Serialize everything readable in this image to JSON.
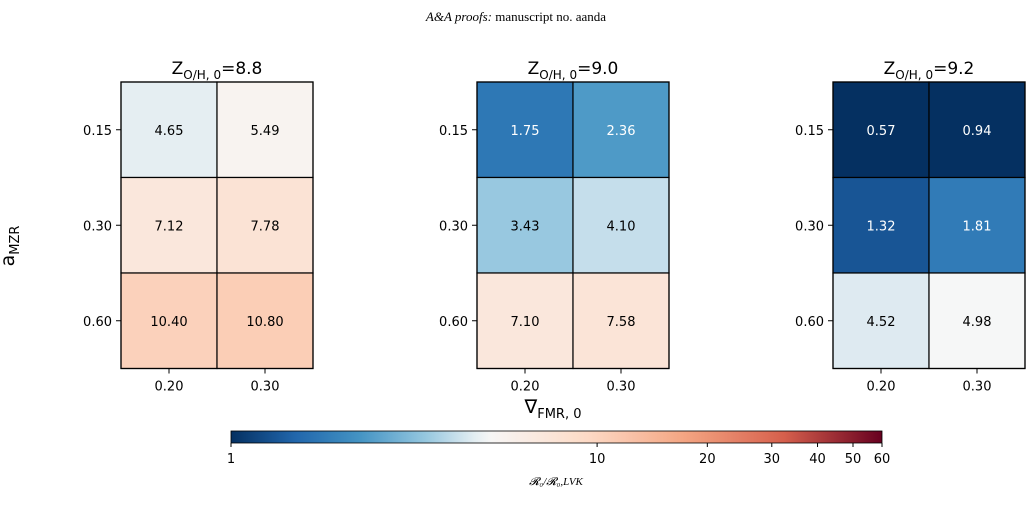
{
  "header": {
    "journal": "A&A proofs:",
    "rest": "manuscript no. aanda"
  },
  "ylabel": {
    "main": "a",
    "sub": "MZR"
  },
  "xlabel": {
    "main": "∇",
    "sub": "FMR, 0"
  },
  "colorbar": {
    "label": "𝓡₀/𝓡₀,LVK",
    "ticks": [
      "1",
      "10",
      "20",
      "30",
      "40",
      "50",
      "60"
    ],
    "tick_values": [
      1,
      10,
      20,
      30,
      40,
      50,
      60
    ],
    "range": [
      1,
      60
    ],
    "scale": "log",
    "colormap": "RdBu_r",
    "center": 5
  },
  "chart_data": [
    {
      "type": "heatmap",
      "title": {
        "prefix": "Z",
        "sub": "O/H, 0",
        "suffix": "=8.8"
      },
      "x_categories": [
        "0.20",
        "0.30"
      ],
      "y_categories": [
        "0.15",
        "0.30",
        "0.60"
      ],
      "values": [
        [
          4.65,
          5.49
        ],
        [
          7.12,
          7.78
        ],
        [
          10.4,
          10.8
        ]
      ],
      "labels": [
        [
          "4.65",
          "5.49"
        ],
        [
          "7.12",
          "7.78"
        ],
        [
          "10.40",
          "10.80"
        ]
      ]
    },
    {
      "type": "heatmap",
      "title": {
        "prefix": "Z",
        "sub": "O/H, 0",
        "suffix": "=9.0"
      },
      "x_categories": [
        "0.20",
        "0.30"
      ],
      "y_categories": [
        "0.15",
        "0.30",
        "0.60"
      ],
      "values": [
        [
          1.75,
          2.36
        ],
        [
          3.43,
          4.1
        ],
        [
          7.1,
          7.58
        ]
      ],
      "labels": [
        [
          "1.75",
          "2.36"
        ],
        [
          "3.43",
          "4.10"
        ],
        [
          "7.10",
          "7.58"
        ]
      ]
    },
    {
      "type": "heatmap",
      "title": {
        "prefix": "Z",
        "sub": "O/H, 0",
        "suffix": "=9.2"
      },
      "x_categories": [
        "0.20",
        "0.30"
      ],
      "y_categories": [
        "0.15",
        "0.30",
        "0.60"
      ],
      "values": [
        [
          0.57,
          0.94
        ],
        [
          1.32,
          1.81
        ],
        [
          4.52,
          4.98
        ]
      ],
      "labels": [
        [
          "0.57",
          "0.94"
        ],
        [
          "1.32",
          "1.81"
        ],
        [
          "4.52",
          "4.98"
        ]
      ]
    }
  ]
}
